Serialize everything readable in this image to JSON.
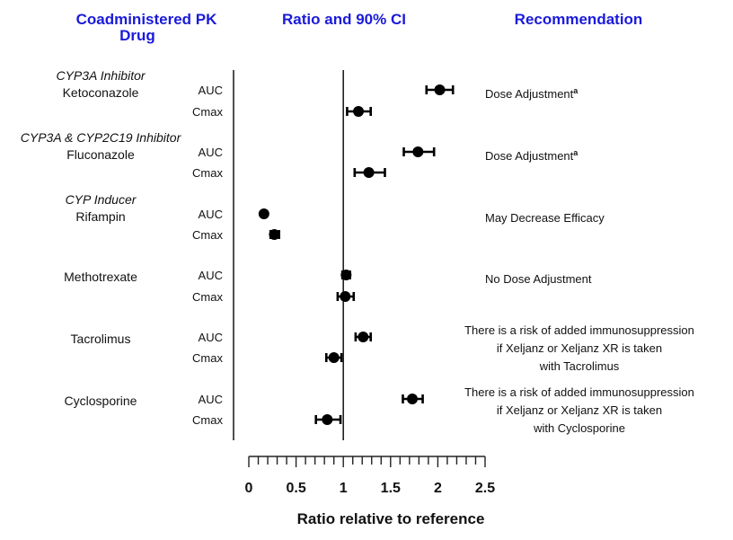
{
  "headers": {
    "drug": [
      "Coadministered PK",
      "Drug"
    ],
    "ratio": "Ratio and 90% CI",
    "recommendation": "Recommendation"
  },
  "chart_data": {
    "type": "scatter",
    "xlabel": "Ratio relative to reference",
    "xlim": [
      0,
      2.5
    ],
    "xticks": [
      "0",
      "0.5",
      "1",
      "1.5",
      "2",
      "2.5"
    ],
    "reference_line": 1,
    "groups": [
      {
        "subtitle": "CYP3A Inhibitor",
        "drug": "Ketoconazole",
        "recommendation": [
          "Dose Adjustment"
        ],
        "superscript": "a",
        "rows": [
          {
            "metric": "AUC",
            "ratio": 2.02,
            "ci": [
              1.88,
              2.16
            ]
          },
          {
            "metric": "Cmax",
            "ratio": 1.16,
            "ci": [
              1.04,
              1.29
            ]
          }
        ]
      },
      {
        "subtitle": "CYP3A & CYP2C19 Inhibitor",
        "drug": "Fluconazole",
        "recommendation": [
          "Dose Adjustment"
        ],
        "superscript": "a",
        "rows": [
          {
            "metric": "AUC",
            "ratio": 1.79,
            "ci": [
              1.64,
              1.96
            ]
          },
          {
            "metric": "Cmax",
            "ratio": 1.27,
            "ci": [
              1.12,
              1.44
            ]
          }
        ]
      },
      {
        "subtitle": "CYP Inducer",
        "drug": "Rifampin",
        "recommendation": [
          "May Decrease Efficacy"
        ],
        "rows": [
          {
            "metric": "AUC",
            "ratio": 0.16,
            "ci": [
              0.14,
              0.18
            ]
          },
          {
            "metric": "Cmax",
            "ratio": 0.27,
            "ci": [
              0.23,
              0.32
            ]
          }
        ]
      },
      {
        "subtitle": "",
        "drug": "Methotrexate",
        "recommendation": [
          "No Dose Adjustment"
        ],
        "rows": [
          {
            "metric": "AUC",
            "ratio": 1.03,
            "ci": [
              0.99,
              1.07
            ]
          },
          {
            "metric": "Cmax",
            "ratio": 1.02,
            "ci": [
              0.94,
              1.11
            ]
          }
        ]
      },
      {
        "subtitle": "",
        "drug": "Tacrolimus",
        "recommendation": [
          "There is a risk of added immunosuppression",
          "if Xeljanz or Xeljanz XR is taken",
          "with Tacrolimus"
        ],
        "rows": [
          {
            "metric": "AUC",
            "ratio": 1.21,
            "ci": [
              1.13,
              1.29
            ]
          },
          {
            "metric": "Cmax",
            "ratio": 0.9,
            "ci": [
              0.82,
              0.98
            ]
          }
        ]
      },
      {
        "subtitle": "",
        "drug": "Cyclosporine",
        "recommendation": [
          "There is a risk of added immunosuppression",
          "if Xeljanz or Xeljanz XR is taken",
          "with Cyclosporine"
        ],
        "rows": [
          {
            "metric": "AUC",
            "ratio": 1.73,
            "ci": [
              1.63,
              1.84
            ]
          },
          {
            "metric": "Cmax",
            "ratio": 0.83,
            "ci": [
              0.71,
              0.97
            ]
          }
        ]
      }
    ]
  }
}
